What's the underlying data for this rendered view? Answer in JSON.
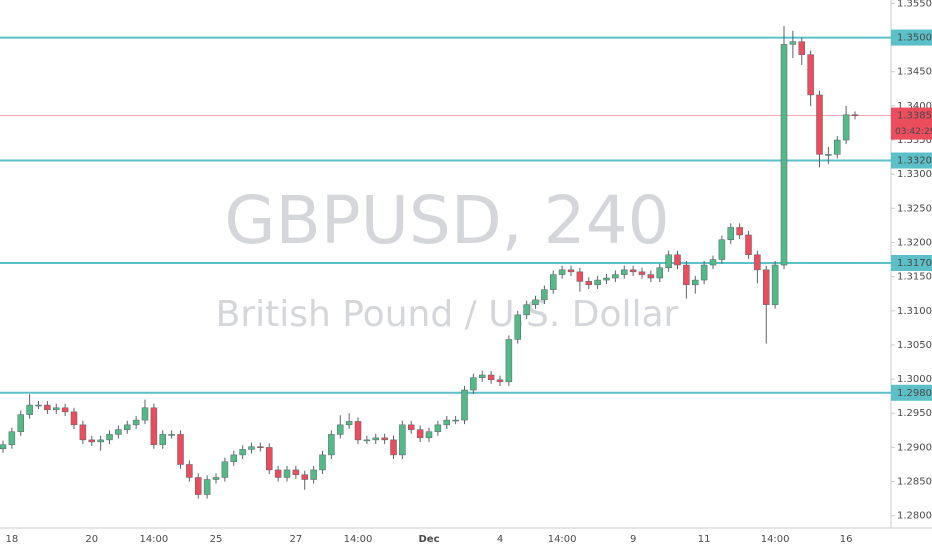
{
  "chart_data": {
    "type": "candlestick",
    "watermark": "GBPUSD, 240",
    "description": "British Pound / U.S. Dollar",
    "up_color": "#53b987",
    "down_color": "#eb4d5c",
    "level_color": "#5bc0c8",
    "ylim": [
      1.2782,
      1.3555
    ],
    "yticks": [
      {
        "value": 1.28,
        "label": "1.28000"
      },
      {
        "value": 1.285,
        "label": "1.28500"
      },
      {
        "value": 1.29,
        "label": "1.29000"
      },
      {
        "value": 1.295,
        "label": "1.29500"
      },
      {
        "value": 1.3,
        "label": "1.30000"
      },
      {
        "value": 1.305,
        "label": "1.30500"
      },
      {
        "value": 1.31,
        "label": "1.31000"
      },
      {
        "value": 1.315,
        "label": "1.31500"
      },
      {
        "value": 1.32,
        "label": "1.32000"
      },
      {
        "value": 1.325,
        "label": "1.32500"
      },
      {
        "value": 1.33,
        "label": "1.33000"
      },
      {
        "value": 1.335,
        "label": "1.33500"
      },
      {
        "value": 1.34,
        "label": "1.34000"
      },
      {
        "value": 1.345,
        "label": "1.34500"
      },
      {
        "value": 1.35,
        "label": "1.35000"
      },
      {
        "value": 1.355,
        "label": "1.35500"
      }
    ],
    "levels": [
      {
        "value": 1.35,
        "label": "1.35000"
      },
      {
        "value": 1.332,
        "label": "1.33200"
      },
      {
        "value": 1.317,
        "label": "1.31700"
      },
      {
        "value": 1.298,
        "label": "1.29800"
      }
    ],
    "last_price": {
      "value": 1.33858,
      "label": "1.33858"
    },
    "countdown": "03:42:29",
    "categories": [
      null,
      "18",
      null,
      null,
      null,
      null,
      null,
      null,
      null,
      null,
      "20",
      null,
      null,
      null,
      null,
      null,
      null,
      "14:00",
      null,
      null,
      null,
      null,
      null,
      null,
      "25",
      null,
      null,
      null,
      null,
      null,
      null,
      null,
      null,
      "27",
      null,
      null,
      null,
      null,
      null,
      null,
      "14:00",
      null,
      null,
      null,
      null,
      null,
      null,
      null,
      "Dec",
      null,
      null,
      null,
      null,
      null,
      null,
      null,
      "4",
      null,
      null,
      null,
      null,
      null,
      null,
      "14:00",
      null,
      null,
      null,
      null,
      null,
      null,
      null,
      "9",
      null,
      null,
      null,
      null,
      null,
      null,
      null,
      "11",
      null,
      null,
      null,
      null,
      null,
      null,
      null,
      "14:00",
      null,
      null,
      null,
      null,
      null,
      null,
      null,
      "16",
      null
    ],
    "open": [
      1.2898,
      1.2904,
      1.2923,
      1.2948,
      1.2962,
      1.2962,
      1.2955,
      1.2958,
      1.2952,
      1.2933,
      1.2911,
      1.2908,
      1.2911,
      1.2919,
      1.2926,
      1.2933,
      1.294,
      1.2958,
      1.2904,
      1.2919,
      1.2919,
      1.2875,
      1.2856,
      1.2831,
      1.2853,
      1.2856,
      1.2879,
      1.2889,
      1.2897,
      1.2901,
      1.29,
      1.2867,
      1.2856,
      1.2867,
      1.286,
      1.2853,
      1.2867,
      1.2889,
      1.2919,
      1.2933,
      1.2938,
      1.2911,
      1.2911,
      1.2914,
      1.2911,
      1.2889,
      1.2933,
      1.2926,
      1.2914,
      1.2923,
      1.2933,
      1.294,
      1.294,
      1.2984,
      1.3002,
      1.3006,
      1.2999,
      1.2996,
      1.3058,
      1.3094,
      1.3109,
      1.3116,
      1.3131,
      1.3153,
      1.316,
      1.3157,
      1.3143,
      1.3138,
      1.3145,
      1.3148,
      1.3153,
      1.316,
      1.3157,
      1.3153,
      1.3148,
      1.3163,
      1.3182,
      1.3167,
      1.3138,
      1.3145,
      1.3167,
      1.3175,
      1.3204,
      1.3222,
      1.3211,
      1.3182,
      1.316,
      1.3109,
      1.3167,
      1.349,
      1.3494,
      1.3475,
      1.3416,
      1.3329,
      1.3329,
      1.335,
      1.3387
    ],
    "high": [
      1.291,
      1.2929,
      1.2954,
      1.2978,
      1.2968,
      1.2968,
      1.2964,
      1.2964,
      1.2958,
      1.2939,
      1.2917,
      1.2917,
      1.2925,
      1.2932,
      1.2939,
      1.2946,
      1.297,
      1.2964,
      1.2925,
      1.2925,
      1.2925,
      1.2881,
      1.2862,
      1.2859,
      1.2862,
      1.2885,
      1.2895,
      1.2903,
      1.2907,
      1.2907,
      1.2906,
      1.2873,
      1.2873,
      1.2873,
      1.2866,
      1.2873,
      1.2895,
      1.2925,
      1.2947,
      1.295,
      1.2944,
      1.2917,
      1.292,
      1.292,
      1.2917,
      1.2939,
      1.2939,
      1.2932,
      1.2929,
      1.2939,
      1.2946,
      1.2946,
      1.299,
      1.3008,
      1.3012,
      1.3012,
      1.3005,
      1.3064,
      1.31,
      1.3115,
      1.3122,
      1.3137,
      1.3159,
      1.3166,
      1.3166,
      1.3163,
      1.3149,
      1.3151,
      1.3154,
      1.3159,
      1.3166,
      1.3166,
      1.3163,
      1.3159,
      1.3169,
      1.3188,
      1.3188,
      1.3173,
      1.3151,
      1.3173,
      1.3181,
      1.321,
      1.3228,
      1.3228,
      1.3217,
      1.3188,
      1.3166,
      1.3173,
      1.3517,
      1.351,
      1.35,
      1.3481,
      1.3422,
      1.334,
      1.3356,
      1.34,
      1.3392
    ],
    "low": [
      1.2892,
      1.2898,
      1.2917,
      1.2942,
      1.2956,
      1.2949,
      1.2949,
      1.2946,
      1.2927,
      1.2905,
      1.2902,
      1.2895,
      1.2905,
      1.2913,
      1.292,
      1.2927,
      1.2934,
      1.2898,
      1.2898,
      1.2913,
      1.2869,
      1.285,
      1.2825,
      1.2825,
      1.2847,
      1.285,
      1.2873,
      1.2883,
      1.2891,
      1.2894,
      1.2861,
      1.285,
      1.285,
      1.2854,
      1.2838,
      1.2847,
      1.2861,
      1.2883,
      1.2913,
      1.2927,
      1.2905,
      1.2905,
      1.2905,
      1.2905,
      1.2883,
      1.2883,
      1.292,
      1.2908,
      1.2908,
      1.2917,
      1.2927,
      1.2934,
      1.2934,
      1.2978,
      1.2996,
      1.2993,
      1.299,
      1.299,
      1.3052,
      1.3088,
      1.3103,
      1.311,
      1.3125,
      1.3147,
      1.3151,
      1.3128,
      1.3132,
      1.3132,
      1.3139,
      1.3142,
      1.3147,
      1.3151,
      1.3147,
      1.3142,
      1.3142,
      1.3157,
      1.3161,
      1.3118,
      1.3125,
      1.3139,
      1.3161,
      1.3169,
      1.3198,
      1.3205,
      1.3176,
      1.314,
      1.3052,
      1.3103,
      1.3161,
      1.347,
      1.346,
      1.34,
      1.331,
      1.3315,
      1.3323,
      1.3344,
      1.338
    ],
    "close": [
      1.2904,
      1.2923,
      1.2948,
      1.2962,
      1.2962,
      1.2955,
      1.2958,
      1.2952,
      1.2933,
      1.2911,
      1.2908,
      1.2911,
      1.2919,
      1.2926,
      1.2933,
      1.294,
      1.2958,
      1.2904,
      1.2919,
      1.2919,
      1.2875,
      1.2856,
      1.2831,
      1.2853,
      1.2856,
      1.2879,
      1.2889,
      1.2897,
      1.2901,
      1.29,
      1.2867,
      1.2856,
      1.2867,
      1.286,
      1.2853,
      1.2867,
      1.2889,
      1.2919,
      1.2933,
      1.2938,
      1.2911,
      1.2911,
      1.2914,
      1.2911,
      1.2889,
      1.2933,
      1.2926,
      1.2914,
      1.2923,
      1.2933,
      1.294,
      1.294,
      1.2984,
      1.3002,
      1.3006,
      1.2999,
      1.2996,
      1.3058,
      1.3094,
      1.3109,
      1.3116,
      1.3131,
      1.3153,
      1.316,
      1.3157,
      1.3143,
      1.3138,
      1.3145,
      1.3148,
      1.3153,
      1.316,
      1.3157,
      1.3153,
      1.3148,
      1.3163,
      1.3182,
      1.3167,
      1.3138,
      1.3145,
      1.3167,
      1.3175,
      1.3204,
      1.3222,
      1.3211,
      1.3182,
      1.316,
      1.3109,
      1.3167,
      1.349,
      1.3494,
      1.3475,
      1.3416,
      1.3329,
      1.3329,
      1.335,
      1.3387,
      1.3386
    ]
  }
}
